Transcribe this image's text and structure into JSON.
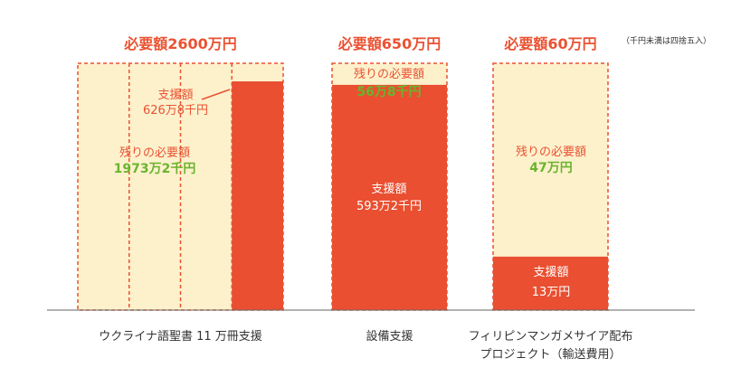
{
  "note": "（千円未満は四捨五入）",
  "colors": {
    "required": "#fdf1cc",
    "border": "#ea5232",
    "raised": "#e94f30",
    "heading": "#ea5232",
    "remaining_value": "#6ab42e",
    "text": "#333333",
    "inverse_text": "#ffffff",
    "axis": "#666666"
  },
  "chart_data": {
    "type": "bar",
    "categories": [
      "ウクライナ語聖書 11 万冊支援",
      "設備支援",
      "フィリピンマンガメサイア配布 プロジェクト（輸送費用）"
    ],
    "category_lines": [
      [
        "ウクライナ語聖書 11 万冊支援"
      ],
      [
        "設備支援"
      ],
      [
        "フィリピンマンガメサイア配布",
        "プロジェクト（輸送費用）"
      ]
    ],
    "unit": "万円",
    "series": [
      {
        "name": "支援額",
        "values": [
          626.8,
          593.2,
          13
        ]
      },
      {
        "name": "残りの必要額",
        "values": [
          1973.2,
          56.8,
          47
        ]
      }
    ],
    "required": [
      2600,
      650,
      60
    ],
    "labels": {
      "required": [
        "必要額2600万円",
        "必要額650万円",
        "必要額60万円"
      ],
      "raised_title": [
        "支援額",
        "支援額",
        "支援額"
      ],
      "raised_value": [
        "626万8千円",
        "593万2千円",
        "13万円"
      ],
      "remaining_title": [
        "残りの必要額",
        "残りの必要額",
        "残りの必要額"
      ],
      "remaining_value": [
        "1973万2千円",
        "56万8千円",
        "47万円"
      ]
    }
  }
}
